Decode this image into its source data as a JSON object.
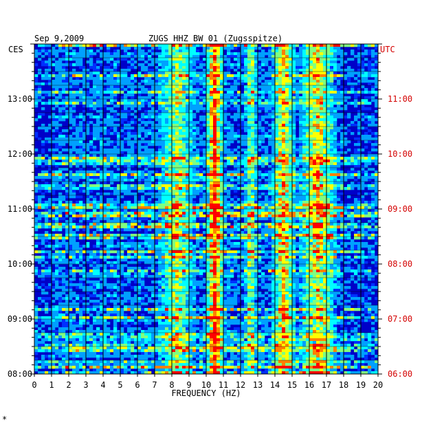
{
  "header": {
    "date": "Sep 9,2009",
    "station": "ZUGS HHZ BW 01 (Zugsspitze)"
  },
  "axes": {
    "left_zone": "CES",
    "right_zone": "UTC",
    "xlabel": "FREQUENCY (HZ)"
  },
  "colors": {
    "background": "#0000c8",
    "left_text": "#000000",
    "right_text": "#d40000"
  },
  "chart_data": {
    "type": "heatmap",
    "title": "ZUGS HHZ BW 01 (Zugsspitze)",
    "subtitle": "Sep 9,2009",
    "xlabel": "FREQUENCY (HZ)",
    "xlim": [
      0,
      20
    ],
    "x_ticks": [
      "0",
      "1",
      "2",
      "3",
      "4",
      "5",
      "6",
      "7",
      "8",
      "9",
      "10",
      "11",
      "12",
      "13",
      "14",
      "15",
      "16",
      "17",
      "18",
      "19",
      "20"
    ],
    "left_time_labels": [
      "13:00",
      "12:00",
      "11:00",
      "10:00",
      "09:00",
      "08:00"
    ],
    "right_time_labels": [
      "11:00",
      "10:00",
      "09:00",
      "08:00",
      "07:00",
      "06:00"
    ],
    "left_time_values_hours": [
      13,
      12,
      11,
      10,
      9,
      8
    ],
    "time_range_hours_CES": [
      8,
      14
    ],
    "grid": true,
    "colormap": [
      "#0000c8",
      "#0030ff",
      "#00a0ff",
      "#00ffff",
      "#80ff80",
      "#ffff00",
      "#ff8000",
      "#ff0000"
    ],
    "hot_bands_hz": [
      {
        "center": 10.5,
        "width": 0.6,
        "intensity": 0.85
      },
      {
        "center": 14.5,
        "width": 0.8,
        "intensity": 0.6
      },
      {
        "center": 16.5,
        "width": 1.2,
        "intensity": 0.6
      },
      {
        "center": 12.6,
        "width": 0.4,
        "intensity": 0.45
      },
      {
        "center": 8.3,
        "width": 1.2,
        "intensity": 0.45
      }
    ]
  }
}
